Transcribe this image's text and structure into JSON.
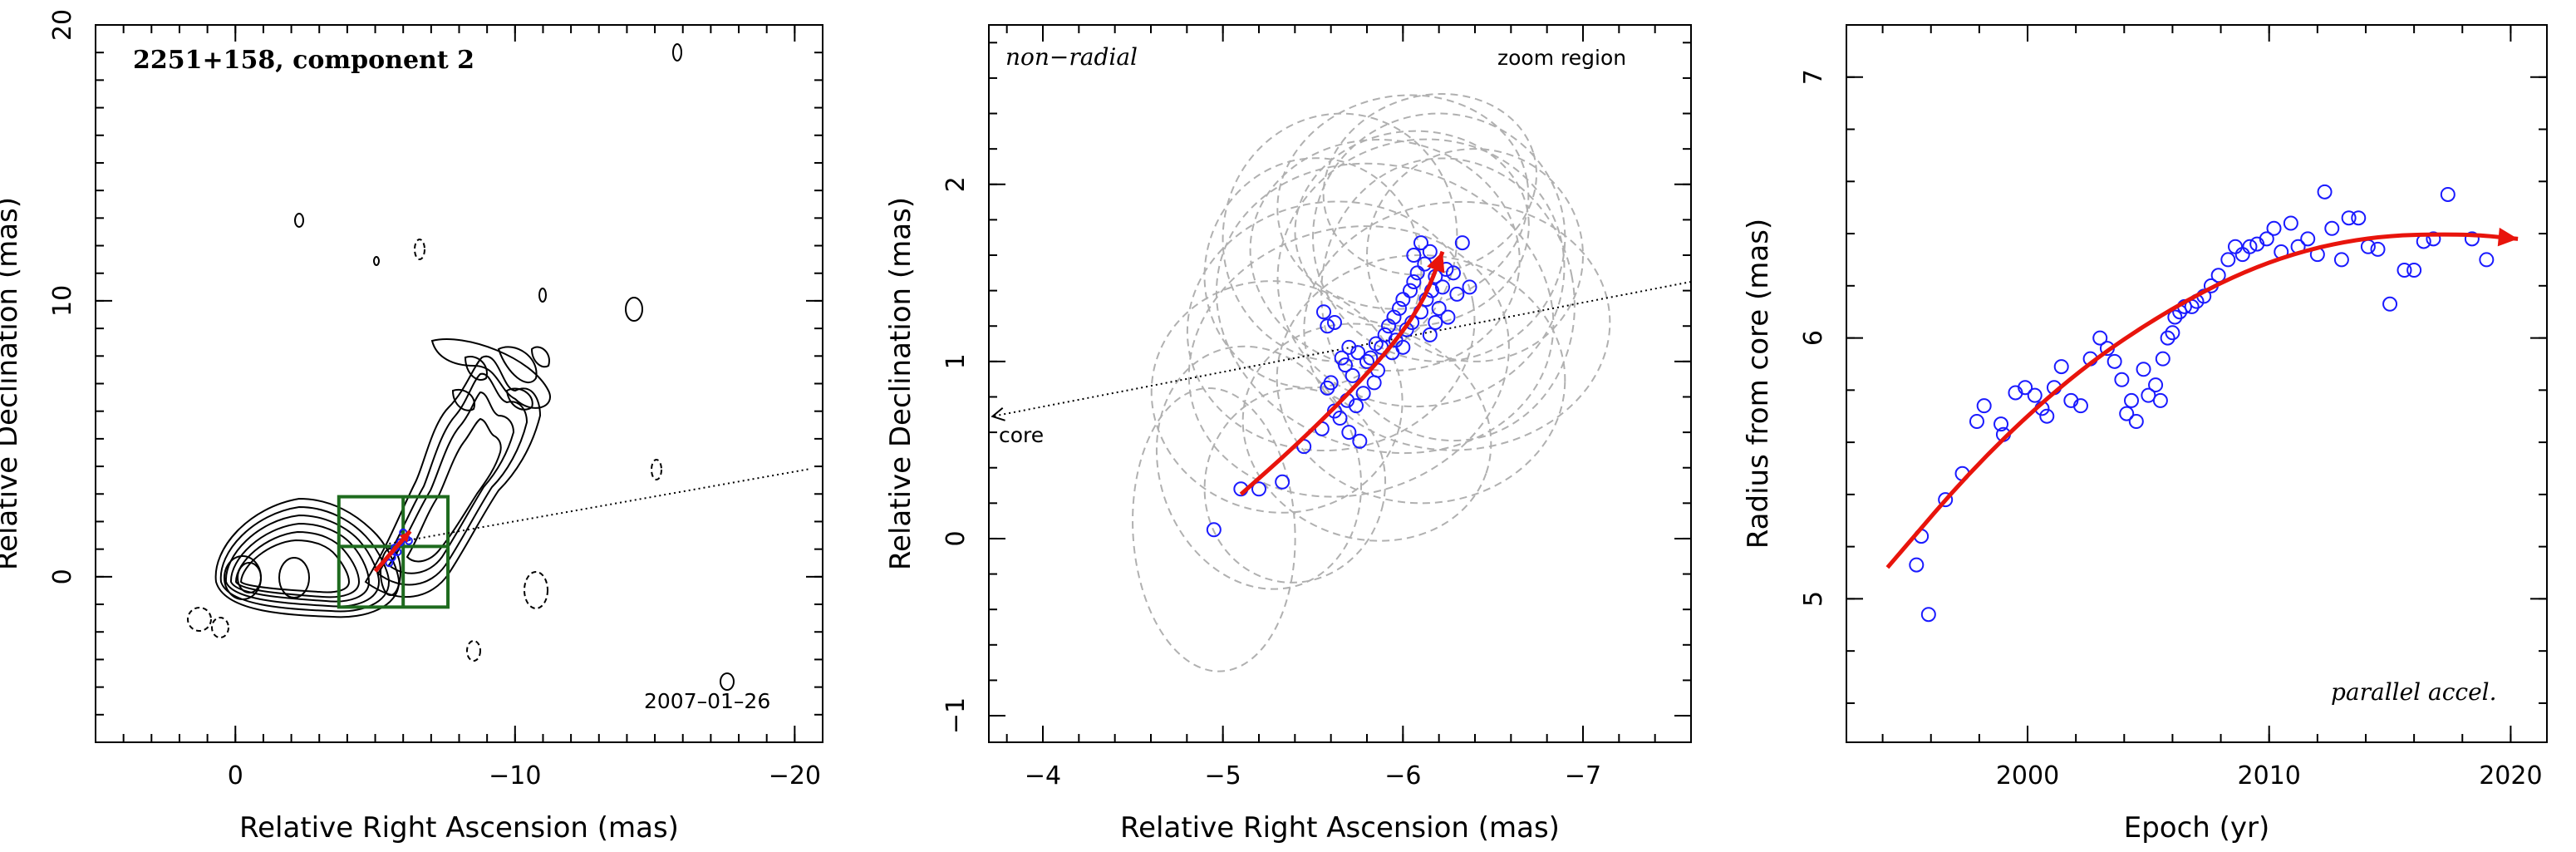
{
  "chart_data": [
    {
      "type": "contour",
      "title": "2251+158, component 2",
      "annotation": "2007–01–26",
      "xlabel": "Relative Right Ascension (mas)",
      "ylabel": "Relative Declination (mas)",
      "xlim": [
        5,
        -21
      ],
      "ylim": [
        -6,
        20
      ],
      "xticks": [
        0,
        -10,
        -20
      ],
      "yticks": [
        0,
        10,
        20
      ],
      "xtick_labels": [
        "0",
        "−10",
        "−20"
      ],
      "ytick_labels": [
        "0",
        "10",
        "20"
      ],
      "zoom_box": {
        "x": [
          -3.7,
          -7.6
        ],
        "y": [
          -1.1,
          2.9
        ]
      },
      "direction_line": {
        "from": [
          -5.5,
          1.2
        ],
        "to": [
          -20.5,
          3.9
        ]
      },
      "points": [
        [
          -5.7,
          1.05
        ],
        [
          -5.9,
          1.25
        ],
        [
          -6.1,
          1.4
        ],
        [
          -5.8,
          0.9
        ],
        [
          -6.0,
          1.6
        ],
        [
          -5.6,
          0.7
        ],
        [
          -6.2,
          1.3
        ],
        [
          -5.5,
          0.5
        ]
      ]
    },
    {
      "type": "scatter",
      "annotation_left": "non−radial",
      "annotation_right": "zoom region",
      "core_label": "core",
      "xlabel": "Relative Right Ascension (mas)",
      "ylabel": "Relative Declination (mas)",
      "xlim": [
        -3.7,
        -7.6
      ],
      "ylim": [
        -1.15,
        2.9
      ],
      "xticks": [
        -4,
        -5,
        -6,
        -7
      ],
      "yticks": [
        -1,
        0,
        1,
        2
      ],
      "xtick_labels": [
        "−4",
        "−5",
        "−6",
        "−7"
      ],
      "ytick_labels": [
        "−1",
        "0",
        "1",
        "2"
      ],
      "points": [
        [
          -4.95,
          0.05
        ],
        [
          -5.1,
          0.28
        ],
        [
          -5.2,
          0.28
        ],
        [
          -5.33,
          0.32
        ],
        [
          -5.45,
          0.52
        ],
        [
          -5.55,
          0.62
        ],
        [
          -5.58,
          0.85
        ],
        [
          -5.6,
          0.88
        ],
        [
          -5.62,
          0.72
        ],
        [
          -5.65,
          0.68
        ],
        [
          -5.66,
          1.02
        ],
        [
          -5.68,
          0.98
        ],
        [
          -5.69,
          0.78
        ],
        [
          -5.7,
          0.6
        ],
        [
          -5.72,
          0.92
        ],
        [
          -5.74,
          0.75
        ],
        [
          -5.75,
          1.05
        ],
        [
          -5.76,
          0.55
        ],
        [
          -5.78,
          0.82
        ],
        [
          -5.8,
          1.0
        ],
        [
          -5.82,
          1.02
        ],
        [
          -5.84,
          0.88
        ],
        [
          -5.85,
          1.1
        ],
        [
          -5.86,
          0.95
        ],
        [
          -5.88,
          1.08
        ],
        [
          -5.9,
          1.15
        ],
        [
          -5.92,
          1.2
        ],
        [
          -5.94,
          1.05
        ],
        [
          -5.95,
          1.25
        ],
        [
          -5.96,
          1.12
        ],
        [
          -5.98,
          1.3
        ],
        [
          -6.0,
          1.35
        ],
        [
          -6.02,
          1.18
        ],
        [
          -6.04,
          1.4
        ],
        [
          -6.05,
          1.22
        ],
        [
          -6.06,
          1.45
        ],
        [
          -6.08,
          1.5
        ],
        [
          -6.1,
          1.28
        ],
        [
          -6.12,
          1.55
        ],
        [
          -6.13,
          1.35
        ],
        [
          -6.15,
          1.62
        ],
        [
          -6.16,
          1.4
        ],
        [
          -6.18,
          1.48
        ],
        [
          -6.2,
          1.3
        ],
        [
          -6.22,
          1.42
        ],
        [
          -6.24,
          1.52
        ],
        [
          -6.25,
          1.25
        ],
        [
          -6.28,
          1.5
        ],
        [
          -6.3,
          1.38
        ],
        [
          -6.33,
          1.67
        ],
        [
          -6.37,
          1.42
        ],
        [
          -6.06,
          1.6
        ],
        [
          -6.1,
          1.67
        ],
        [
          -5.62,
          1.22
        ],
        [
          -5.58,
          1.2
        ],
        [
          -5.56,
          1.28
        ],
        [
          -5.7,
          1.08
        ],
        [
          -6.15,
          1.15
        ],
        [
          -6.18,
          1.22
        ],
        [
          -6.0,
          1.08
        ]
      ],
      "fit_curve": [
        [
          -5.1,
          0.25
        ],
        [
          -5.4,
          0.52
        ],
        [
          -5.7,
          0.82
        ],
        [
          -5.95,
          1.1
        ],
        [
          -6.12,
          1.35
        ],
        [
          -6.22,
          1.62
        ]
      ],
      "core_arrow": {
        "from": [
          -7.6,
          1.45
        ],
        "to": [
          -3.72,
          0.69
        ]
      },
      "ellipses": [
        [
          -5.2,
          0.4,
          0.55,
          0.7
        ],
        [
          -4.95,
          0.05,
          0.45,
          0.8
        ],
        [
          -5.3,
          0.8,
          0.7,
          0.65
        ],
        [
          -5.6,
          1.2,
          0.8,
          0.7
        ],
        [
          -5.9,
          1.6,
          0.75,
          0.65
        ],
        [
          -6.1,
          1.5,
          0.8,
          0.75
        ],
        [
          -6.2,
          1.7,
          0.7,
          0.7
        ],
        [
          -5.8,
          0.6,
          0.7,
          0.6
        ],
        [
          -6.3,
          1.2,
          0.85,
          0.7
        ],
        [
          -5.5,
          1.5,
          0.6,
          0.65
        ],
        [
          -6.0,
          1.9,
          0.7,
          0.6
        ],
        [
          -6.4,
          1.6,
          0.6,
          0.6
        ],
        [
          -5.7,
          1.0,
          0.9,
          0.75
        ],
        [
          -6.1,
          0.9,
          0.8,
          0.7
        ],
        [
          -5.9,
          1.3,
          0.95,
          0.8
        ],
        [
          -6.05,
          1.75,
          0.65,
          0.55
        ],
        [
          -5.4,
          0.3,
          0.5,
          0.55
        ],
        [
          -6.25,
          1.35,
          0.7,
          0.8
        ],
        [
          -5.65,
          1.7,
          0.65,
          0.7
        ],
        [
          -6.15,
          2.0,
          0.6,
          0.5
        ]
      ]
    },
    {
      "type": "scatter",
      "annotation": "parallel accel.",
      "xlabel": "Epoch (yr)",
      "ylabel": "Radius from core (mas)",
      "xlim": [
        1992.5,
        2021.5
      ],
      "ylim": [
        4.45,
        7.2
      ],
      "xticks": [
        2000,
        2010,
        2020
      ],
      "yticks": [
        5,
        6,
        7
      ],
      "xtick_labels": [
        "2000",
        "2010",
        "2020"
      ],
      "ytick_labels": [
        "5",
        "6",
        "7"
      ],
      "points": [
        [
          1995.4,
          5.13
        ],
        [
          1995.6,
          5.24
        ],
        [
          1995.9,
          4.94
        ],
        [
          1996.6,
          5.38
        ],
        [
          1997.3,
          5.48
        ],
        [
          1997.9,
          5.68
        ],
        [
          1998.2,
          5.74
        ],
        [
          1998.9,
          5.67
        ],
        [
          1999.0,
          5.63
        ],
        [
          1999.5,
          5.79
        ],
        [
          1999.9,
          5.81
        ],
        [
          2000.3,
          5.78
        ],
        [
          2000.6,
          5.73
        ],
        [
          2000.8,
          5.7
        ],
        [
          2001.1,
          5.81
        ],
        [
          2001.4,
          5.89
        ],
        [
          2001.8,
          5.76
        ],
        [
          2002.2,
          5.74
        ],
        [
          2002.6,
          5.92
        ],
        [
          2003.0,
          6.0
        ],
        [
          2003.3,
          5.96
        ],
        [
          2003.6,
          5.91
        ],
        [
          2003.9,
          5.84
        ],
        [
          2004.1,
          5.71
        ],
        [
          2004.3,
          5.76
        ],
        [
          2004.5,
          5.68
        ],
        [
          2004.8,
          5.88
        ],
        [
          2005.0,
          5.78
        ],
        [
          2005.3,
          5.82
        ],
        [
          2005.5,
          5.76
        ],
        [
          2005.6,
          5.92
        ],
        [
          2005.8,
          6.0
        ],
        [
          2006.0,
          6.02
        ],
        [
          2006.1,
          6.08
        ],
        [
          2006.3,
          6.1
        ],
        [
          2006.5,
          6.12
        ],
        [
          2006.8,
          6.12
        ],
        [
          2007.0,
          6.14
        ],
        [
          2007.3,
          6.16
        ],
        [
          2007.6,
          6.2
        ],
        [
          2007.9,
          6.24
        ],
        [
          2008.3,
          6.3
        ],
        [
          2008.6,
          6.35
        ],
        [
          2008.9,
          6.32
        ],
        [
          2009.2,
          6.35
        ],
        [
          2009.5,
          6.36
        ],
        [
          2009.9,
          6.38
        ],
        [
          2010.2,
          6.42
        ],
        [
          2010.5,
          6.33
        ],
        [
          2010.9,
          6.44
        ],
        [
          2011.2,
          6.35
        ],
        [
          2011.6,
          6.38
        ],
        [
          2012.0,
          6.32
        ],
        [
          2012.3,
          6.56
        ],
        [
          2012.6,
          6.42
        ],
        [
          2013.0,
          6.3
        ],
        [
          2013.3,
          6.46
        ],
        [
          2013.7,
          6.46
        ],
        [
          2014.1,
          6.35
        ],
        [
          2014.5,
          6.34
        ],
        [
          2015.0,
          6.13
        ],
        [
          2015.6,
          6.26
        ],
        [
          2016.0,
          6.26
        ],
        [
          2016.4,
          6.37
        ],
        [
          2016.8,
          6.38
        ],
        [
          2017.4,
          6.55
        ],
        [
          2018.4,
          6.38
        ],
        [
          2019.0,
          6.3
        ]
      ],
      "fit_curve": [
        [
          1994.2,
          5.12
        ],
        [
          1998,
          5.53
        ],
        [
          2002,
          5.87
        ],
        [
          2006,
          6.12
        ],
        [
          2010,
          6.3
        ],
        [
          2014,
          6.39
        ],
        [
          2018,
          6.4
        ],
        [
          2020.3,
          6.38
        ]
      ]
    }
  ]
}
